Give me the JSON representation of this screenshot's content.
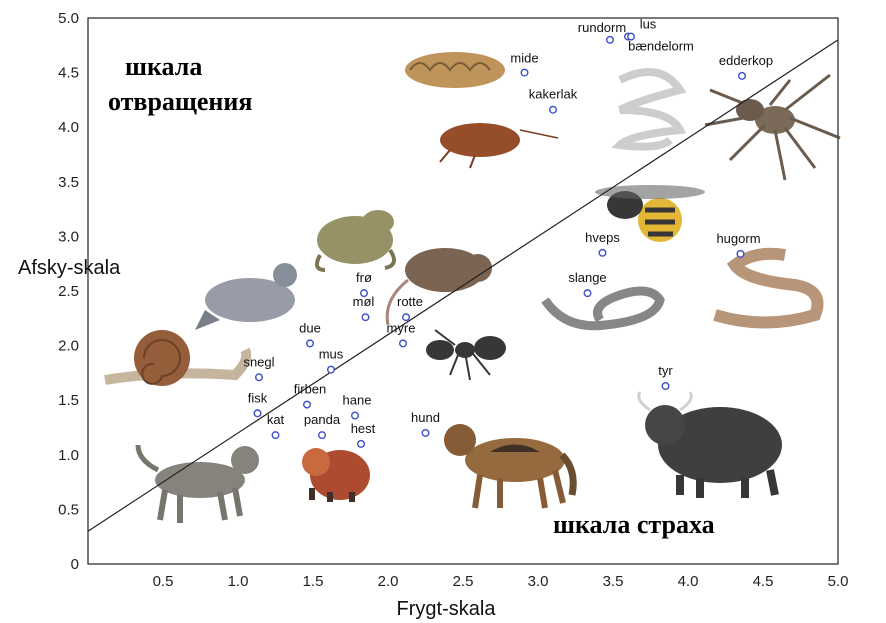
{
  "chart_data": {
    "type": "scatter",
    "xlabel": "Frygt-skala",
    "ylabel": "Afsky-skala",
    "xlim": [
      0,
      5
    ],
    "ylim": [
      0,
      5
    ],
    "xticks": [
      "0.5",
      "1.0",
      "1.5",
      "2.0",
      "2.5",
      "3.0",
      "3.5",
      "4.0",
      "4.5",
      "5.0"
    ],
    "yticks": [
      "0",
      "0.5",
      "1.0",
      "1.5",
      "2.0",
      "2.5",
      "3.0",
      "3.5",
      "4.0",
      "4.5",
      "5.0"
    ],
    "annotations": {
      "disgust_scale": [
        "шкала",
        "отвращения"
      ],
      "fear_scale": "шкала страха"
    },
    "trendline": {
      "x": [
        0,
        5
      ],
      "y": [
        0.3,
        4.8
      ]
    },
    "marker_color": "#3b4fc8",
    "points": [
      {
        "label": "rundorm",
        "x": 3.48,
        "y": 4.8
      },
      {
        "label": "lus",
        "x": 3.6,
        "y": 4.83
      },
      {
        "label": "bændelorm",
        "x": 3.62,
        "y": 4.83
      },
      {
        "label": "mide",
        "x": 2.91,
        "y": 4.5
      },
      {
        "label": "edderkop",
        "x": 4.36,
        "y": 4.47
      },
      {
        "label": "kakerlak",
        "x": 3.1,
        "y": 4.16
      },
      {
        "label": "hveps",
        "x": 3.43,
        "y": 2.85
      },
      {
        "label": "hugorm",
        "x": 4.35,
        "y": 2.84
      },
      {
        "label": "slange",
        "x": 3.33,
        "y": 2.48
      },
      {
        "label": "frø",
        "x": 1.84,
        "y": 2.48
      },
      {
        "label": "rotte",
        "x": 2.12,
        "y": 2.26
      },
      {
        "label": "møl",
        "x": 1.85,
        "y": 2.26
      },
      {
        "label": "myre",
        "x": 2.1,
        "y": 2.02
      },
      {
        "label": "due",
        "x": 1.48,
        "y": 2.02
      },
      {
        "label": "mus",
        "x": 1.62,
        "y": 1.78
      },
      {
        "label": "snegl",
        "x": 1.14,
        "y": 1.71
      },
      {
        "label": "tyr",
        "x": 3.85,
        "y": 1.63
      },
      {
        "label": "firben",
        "x": 1.46,
        "y": 1.46
      },
      {
        "label": "fisk",
        "x": 1.13,
        "y": 1.38
      },
      {
        "label": "hane",
        "x": 1.78,
        "y": 1.36
      },
      {
        "label": "kat",
        "x": 1.25,
        "y": 1.18
      },
      {
        "label": "panda",
        "x": 1.56,
        "y": 1.18
      },
      {
        "label": "hund",
        "x": 2.25,
        "y": 1.2
      },
      {
        "label": "hest",
        "x": 1.82,
        "y": 1.1
      }
    ]
  }
}
